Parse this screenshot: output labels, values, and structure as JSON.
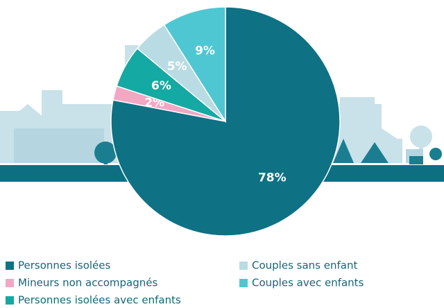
{
  "chart_data": {
    "type": "pie",
    "categories": [
      "Personnes isolées",
      "Mineurs non accompagnés",
      "Personnes isolées avec enfants",
      "Couples sans enfant",
      "Couples avec enfants"
    ],
    "values": [
      78,
      2,
      6,
      5,
      9
    ],
    "value_labels": [
      "78%",
      "2%",
      "6%",
      "5%",
      "9%"
    ],
    "colors": [
      "#0e7184",
      "#f2a7c3",
      "#14a9a2",
      "#b9dbe3",
      "#4fc7d2"
    ]
  }
}
